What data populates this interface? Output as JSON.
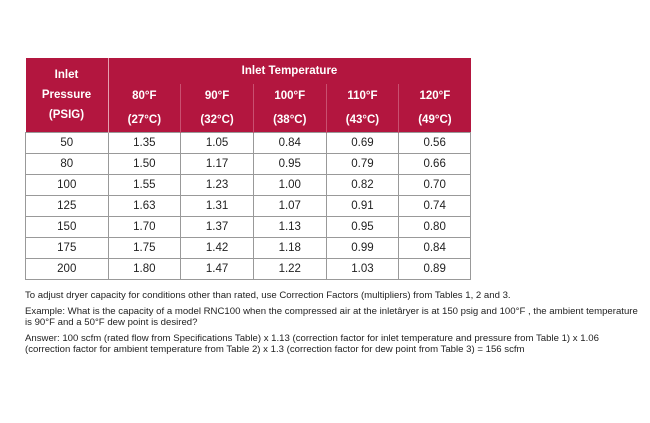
{
  "table": {
    "row_header": [
      "Inlet",
      "Pressure",
      "(PSIG)"
    ],
    "group_header": "Inlet Temperature",
    "columns_f": [
      "80°F",
      "90°F",
      "100°F",
      "110°F",
      "120°F"
    ],
    "columns_c": [
      "(27°C)",
      "(32°C)",
      "(38°C)",
      "(43°C)",
      "(49°C)"
    ],
    "rows": [
      [
        "50",
        "1.35",
        "1.05",
        "0.84",
        "0.69",
        "0.56"
      ],
      [
        "80",
        "1.50",
        "1.17",
        "0.95",
        "0.79",
        "0.66"
      ],
      [
        "100",
        "1.55",
        "1.23",
        "1.00",
        "0.82",
        "0.70"
      ],
      [
        "125",
        "1.63",
        "1.31",
        "1.07",
        "0.91",
        "0.74"
      ],
      [
        "150",
        "1.70",
        "1.37",
        "1.13",
        "0.95",
        "0.80"
      ],
      [
        "175",
        "1.75",
        "1.42",
        "1.18",
        "0.99",
        "0.84"
      ],
      [
        "200",
        "1.80",
        "1.47",
        "1.22",
        "1.03",
        "0.89"
      ]
    ],
    "header_color": "#b3163f"
  },
  "notes": [
    "To adjust dryer capacity for conditions other than rated, use Correction Factors (multipliers) from Tables 1, 2 and 3.",
    "Example: What is the capacity of a model RNC100 when the compressed air at the inletâryer is at 150 psig and 100°F , the ambient temperature is 90°F and a 50°F dew point is desired?",
    "Answer: 100 scfm (rated flow from Specifications Table) x 1.13 (correction factor for inlet temperature and pressure from Table 1) x 1.06 (correction factor for ambient temperature from Table 2) x 1.3 (correction factor for dew point from Table 3) = 156 scfm"
  ]
}
